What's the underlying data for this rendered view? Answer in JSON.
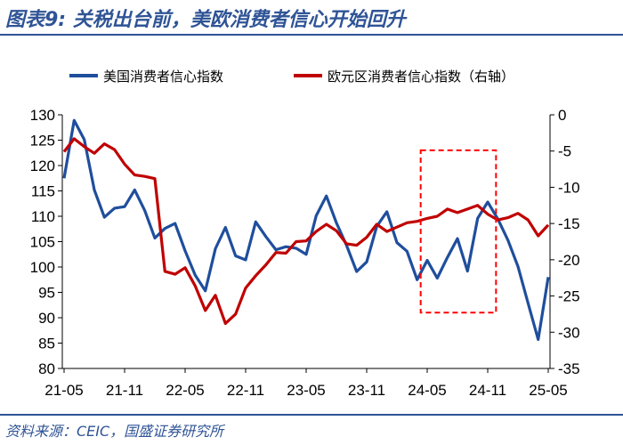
{
  "header": {
    "title": "图表9: 关税出台前，美欧消费者信心开始回升"
  },
  "footer": {
    "source": "资料来源：CEIC，国盛证券研究所"
  },
  "chart_data": {
    "type": "line",
    "x_tick_labels": [
      "21-05",
      "21-11",
      "22-05",
      "22-11",
      "23-05",
      "23-11",
      "24-05",
      "24-11",
      "25-05"
    ],
    "x": [
      "21-05",
      "21-06",
      "21-07",
      "21-08",
      "21-09",
      "21-10",
      "21-11",
      "21-12",
      "22-01",
      "22-02",
      "22-03",
      "22-04",
      "22-05",
      "22-06",
      "22-07",
      "22-08",
      "22-09",
      "22-10",
      "22-11",
      "22-12",
      "23-01",
      "23-02",
      "23-03",
      "23-04",
      "23-05",
      "23-06",
      "23-07",
      "23-08",
      "23-09",
      "23-10",
      "23-11",
      "23-12",
      "24-01",
      "24-02",
      "24-03",
      "24-04",
      "24-05",
      "24-06",
      "24-07",
      "24-08",
      "24-09",
      "24-10",
      "24-11",
      "24-12",
      "25-01",
      "25-02",
      "25-03",
      "25-04",
      "25-05"
    ],
    "ylim_left": [
      80,
      130
    ],
    "ylim_right": [
      -35,
      0
    ],
    "yticks_left": [
      130,
      125,
      120,
      115,
      110,
      105,
      100,
      95,
      90,
      85,
      80
    ],
    "yticks_right": [
      0,
      -5,
      -10,
      -15,
      -20,
      -25,
      -30,
      -35
    ],
    "series": [
      {
        "name": "美国消费者信心指数",
        "axis": "left",
        "color": "#1f4e9c",
        "values": [
          117.5,
          128.9,
          125.1,
          115.2,
          109.8,
          111.6,
          111.9,
          115.2,
          111.1,
          105.7,
          107.6,
          108.6,
          103.2,
          98.4,
          95.3,
          103.6,
          107.8,
          102.2,
          101.4,
          108.9,
          106.0,
          103.4,
          104.0,
          103.7,
          102.5,
          110.1,
          114.0,
          108.7,
          104.3,
          99.1,
          101.0,
          108.0,
          110.9,
          104.8,
          103.1,
          97.5,
          101.3,
          97.8,
          101.9,
          105.6,
          99.2,
          109.6,
          112.8,
          109.5,
          105.3,
          100.1,
          92.9,
          85.7,
          98.0
        ]
      },
      {
        "name": "欧元区消费者信心指数（右轴）",
        "axis": "right",
        "color": "#c00000",
        "values": [
          -5.1,
          -3.3,
          -4.4,
          -5.3,
          -4.0,
          -4.8,
          -6.8,
          -8.3,
          -8.5,
          -8.8,
          -21.6,
          -22.0,
          -21.1,
          -23.6,
          -27.0,
          -24.9,
          -28.8,
          -27.5,
          -23.9,
          -22.2,
          -20.7,
          -19.0,
          -19.1,
          -17.5,
          -17.4,
          -16.1,
          -15.1,
          -16.0,
          -17.8,
          -18.0,
          -16.9,
          -15.1,
          -16.1,
          -15.5,
          -14.9,
          -14.7,
          -14.3,
          -14.0,
          -13.0,
          -13.5,
          -13.0,
          -12.5,
          -13.7,
          -14.5,
          -14.2,
          -13.6,
          -14.5,
          -16.7,
          -15.2
        ]
      }
    ],
    "annotation": {
      "type": "dashed-rectangle",
      "color": "#ff0000",
      "x_from": "24-04",
      "x_to": "24-12",
      "y_from_left": 91,
      "y_to_left": 123
    }
  }
}
